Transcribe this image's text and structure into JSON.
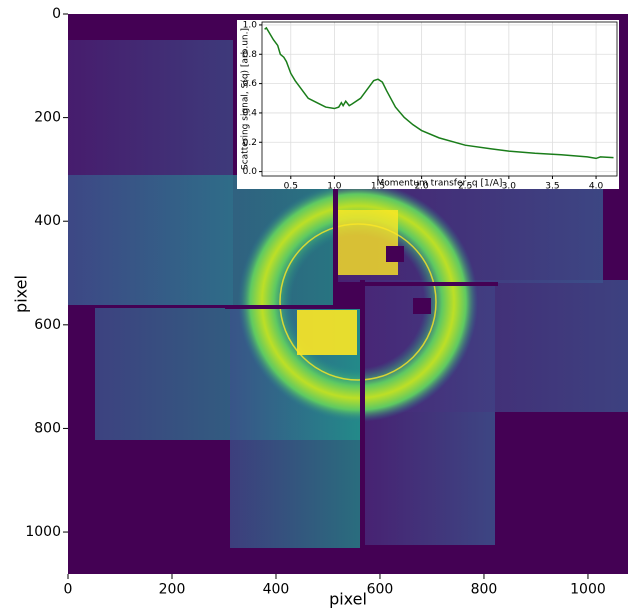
{
  "chart_data": [
    {
      "type": "image",
      "xlabel": "pixel",
      "ylabel": "pixel",
      "xlim": [
        0,
        1077
      ],
      "ylim": [
        1081,
        0
      ],
      "xticks": [
        0,
        200,
        400,
        600,
        800,
        1000
      ],
      "yticks": [
        0,
        200,
        400,
        600,
        800,
        1000
      ]
    },
    {
      "type": "line",
      "xlabel": "Momentum transfer, q [1/A]",
      "ylabel": "Scattering signal, S(q) [arb.un.]",
      "xlim": [
        0.17,
        4.24
      ],
      "ylim": [
        -0.03,
        1.02
      ],
      "grid": true,
      "xticks": [
        0.5,
        {
          "value": 1,
          "label": "1.0"
        },
        1.5,
        {
          "value": 2,
          "label": "2.0"
        },
        2.5,
        {
          "value": 3,
          "label": "3.0"
        },
        3.5,
        {
          "value": 4,
          "label": "4.0"
        }
      ],
      "yticks": [
        {
          "value": 0,
          "label": "0.0"
        },
        0.2,
        0.4,
        0.6,
        0.8,
        {
          "value": 1,
          "label": "1.0"
        }
      ],
      "x": [
        0.2,
        0.22,
        0.25,
        0.3,
        0.35,
        0.38,
        0.42,
        0.45,
        0.5,
        0.55,
        0.6,
        0.65,
        0.7,
        0.8,
        0.9,
        1.0,
        1.05,
        1.08,
        1.1,
        1.13,
        1.17,
        1.2,
        1.3,
        1.4,
        1.45,
        1.5,
        1.55,
        1.6,
        1.7,
        1.8,
        1.9,
        2.0,
        2.2,
        2.5,
        2.8,
        3.0,
        3.3,
        3.6,
        3.9,
        4.0,
        4.05,
        4.2
      ],
      "series": [
        {
          "color": "#1a7d1a",
          "values": [
            0.97,
            0.98,
            0.95,
            0.9,
            0.86,
            0.8,
            0.78,
            0.75,
            0.67,
            0.62,
            0.58,
            0.54,
            0.5,
            0.47,
            0.44,
            0.43,
            0.44,
            0.47,
            0.45,
            0.48,
            0.45,
            0.46,
            0.5,
            0.58,
            0.62,
            0.63,
            0.61,
            0.55,
            0.44,
            0.37,
            0.32,
            0.28,
            0.23,
            0.18,
            0.155,
            0.14,
            0.125,
            0.115,
            0.1,
            0.09,
            0.1,
            0.095
          ]
        }
      ]
    }
  ]
}
